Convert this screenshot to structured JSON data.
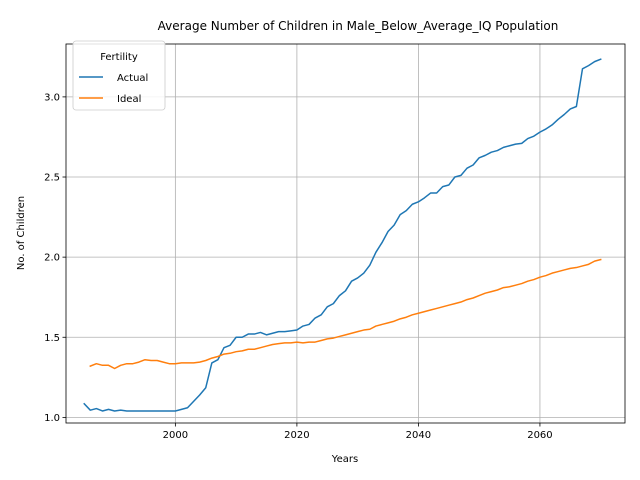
{
  "chart_data": {
    "type": "line",
    "title": "Average Number of Children in Male_Below_Average_IQ Population",
    "xlabel": "Years",
    "ylabel": "No. of Children",
    "xlim": [
      1982,
      2074
    ],
    "ylim": [
      0.965,
      3.33
    ],
    "xticks": [
      2000,
      2020,
      2040,
      2060
    ],
    "yticks": [
      1.0,
      1.5,
      2.0,
      2.5,
      3.0
    ],
    "grid": true,
    "legend": {
      "title": "Fertility",
      "placement": "top-left"
    },
    "series": [
      {
        "name": "Actual",
        "color": "#1f77b4",
        "x": [
          1985,
          1986,
          1987,
          1988,
          1989,
          1990,
          1991,
          1992,
          1993,
          1994,
          1995,
          1996,
          1997,
          1998,
          1999,
          2000,
          2001,
          2002,
          2003,
          2004,
          2005,
          2006,
          2007,
          2008,
          2009,
          2010,
          2011,
          2012,
          2013,
          2014,
          2015,
          2016,
          2017,
          2018,
          2019,
          2020,
          2021,
          2022,
          2023,
          2024,
          2025,
          2026,
          2027,
          2028,
          2029,
          2030,
          2031,
          2032,
          2033,
          2034,
          2035,
          2036,
          2037,
          2038,
          2039,
          2040,
          2041,
          2042,
          2043,
          2044,
          2045,
          2046,
          2047,
          2048,
          2049,
          2050,
          2051,
          2052,
          2053,
          2054,
          2055,
          2056,
          2057,
          2058,
          2059,
          2060,
          2061,
          2062,
          2063,
          2064,
          2065,
          2066,
          2067,
          2068,
          2069,
          2070
        ],
        "y": [
          1.085,
          1.045,
          1.055,
          1.04,
          1.05,
          1.04,
          1.045,
          1.04,
          1.04,
          1.04,
          1.04,
          1.04,
          1.04,
          1.04,
          1.04,
          1.04,
          1.05,
          1.06,
          1.1,
          1.14,
          1.185,
          1.34,
          1.36,
          1.435,
          1.45,
          1.5,
          1.5,
          1.52,
          1.52,
          1.53,
          1.515,
          1.525,
          1.535,
          1.535,
          1.54,
          1.545,
          1.57,
          1.58,
          1.62,
          1.64,
          1.69,
          1.71,
          1.76,
          1.79,
          1.85,
          1.87,
          1.9,
          1.95,
          2.03,
          2.09,
          2.16,
          2.2,
          2.265,
          2.29,
          2.33,
          2.345,
          2.37,
          2.4,
          2.4,
          2.44,
          2.45,
          2.5,
          2.51,
          2.555,
          2.575,
          2.62,
          2.635,
          2.655,
          2.665,
          2.685,
          2.695,
          2.705,
          2.71,
          2.74,
          2.755,
          2.78,
          2.8,
          2.825,
          2.86,
          2.89,
          2.925,
          2.94,
          3.175,
          3.195,
          3.22,
          3.235
        ]
      },
      {
        "name": "Ideal",
        "color": "#ff7f0e",
        "x": [
          1986,
          1987,
          1988,
          1989,
          1990,
          1991,
          1992,
          1993,
          1994,
          1995,
          1996,
          1997,
          1998,
          1999,
          2000,
          2001,
          2002,
          2003,
          2004,
          2005,
          2006,
          2007,
          2008,
          2009,
          2010,
          2011,
          2012,
          2013,
          2014,
          2015,
          2016,
          2017,
          2018,
          2019,
          2020,
          2021,
          2022,
          2023,
          2024,
          2025,
          2026,
          2027,
          2028,
          2029,
          2030,
          2031,
          2032,
          2033,
          2034,
          2035,
          2036,
          2037,
          2038,
          2039,
          2040,
          2041,
          2042,
          2043,
          2044,
          2045,
          2046,
          2047,
          2048,
          2049,
          2050,
          2051,
          2052,
          2053,
          2054,
          2055,
          2056,
          2057,
          2058,
          2059,
          2060,
          2061,
          2062,
          2063,
          2064,
          2065,
          2066,
          2067,
          2068,
          2069,
          2070
        ],
        "y": [
          1.32,
          1.335,
          1.325,
          1.325,
          1.305,
          1.325,
          1.335,
          1.335,
          1.345,
          1.36,
          1.355,
          1.355,
          1.345,
          1.335,
          1.335,
          1.34,
          1.34,
          1.34,
          1.345,
          1.355,
          1.37,
          1.38,
          1.395,
          1.4,
          1.41,
          1.415,
          1.425,
          1.425,
          1.435,
          1.445,
          1.455,
          1.46,
          1.465,
          1.465,
          1.47,
          1.465,
          1.47,
          1.47,
          1.48,
          1.49,
          1.495,
          1.505,
          1.515,
          1.525,
          1.535,
          1.545,
          1.55,
          1.57,
          1.58,
          1.59,
          1.6,
          1.615,
          1.625,
          1.64,
          1.65,
          1.66,
          1.67,
          1.68,
          1.69,
          1.7,
          1.71,
          1.72,
          1.735,
          1.745,
          1.76,
          1.775,
          1.785,
          1.795,
          1.81,
          1.815,
          1.825,
          1.835,
          1.85,
          1.86,
          1.875,
          1.885,
          1.9,
          1.91,
          1.92,
          1.93,
          1.935,
          1.945,
          1.955,
          1.975,
          1.985
        ]
      }
    ]
  }
}
